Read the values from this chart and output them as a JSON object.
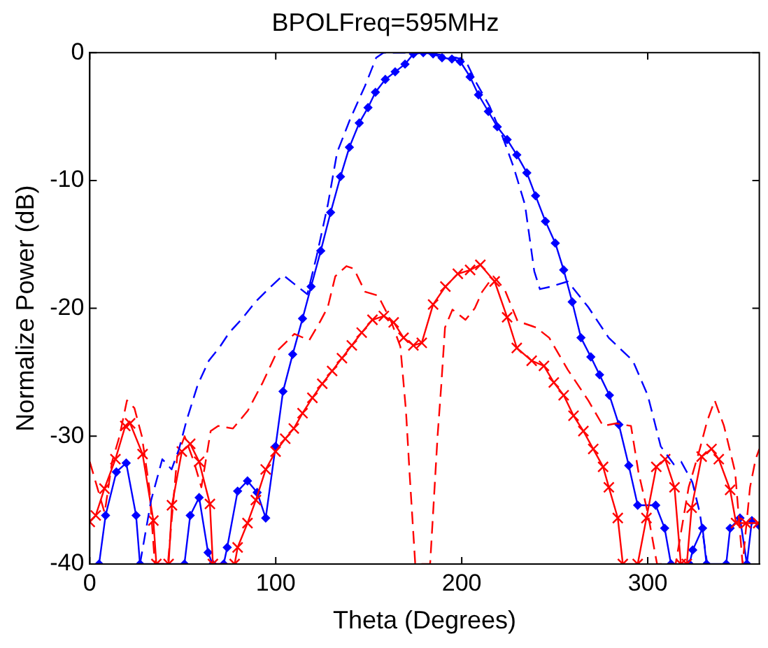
{
  "chart_data": {
    "type": "line",
    "title": "BPOLFreq=595MHz",
    "xlabel": "Theta (Degrees)",
    "ylabel": "Normalize Power (dB)",
    "xlim": [
      0,
      360
    ],
    "ylim": [
      -40,
      0
    ],
    "xticks": [
      0,
      100,
      200,
      300
    ],
    "yticks": [
      -40,
      -30,
      -20,
      -10,
      0
    ],
    "series": [
      {
        "color": "#0000ff",
        "line_style": "dashed",
        "marker": "none",
        "x": [
          27,
          33,
          39,
          44,
          48,
          52,
          58,
          64,
          70,
          75,
          82,
          89,
          96,
          104,
          110,
          117,
          122,
          128,
          133,
          140,
          148,
          154,
          158,
          165,
          174,
          180,
          190,
          197,
          202,
          208,
          215,
          222,
          228,
          234,
          239,
          242,
          248,
          257,
          268,
          279,
          292,
          300,
          307,
          314,
          318,
          324,
          328,
          332
        ],
        "values": [
          -40,
          -35,
          -31.8,
          -32.6,
          -31,
          -28.8,
          -26,
          -24.1,
          -23,
          -21.9,
          -20.8,
          -19.5,
          -18.5,
          -17.4,
          -18.1,
          -18.9,
          -15.9,
          -11.9,
          -7.8,
          -5.2,
          -2.6,
          -0.4,
          0,
          0,
          0,
          0,
          -0.2,
          -0.4,
          -0.6,
          -2.4,
          -4.2,
          -6.6,
          -9,
          -11.9,
          -17.1,
          -18.5,
          -18.3,
          -17.9,
          -19.9,
          -22.3,
          -24.1,
          -26.8,
          -30.8,
          -32.2,
          -32,
          -33.6,
          -36,
          -40
        ]
      },
      {
        "color": "#ff0000",
        "line_style": "dashed",
        "marker": "none",
        "x": [
          0,
          4,
          8,
          12,
          16,
          20,
          24,
          28,
          32,
          35,
          42,
          47,
          51,
          56,
          60,
          65,
          69,
          77,
          85,
          93,
          101,
          110,
          118,
          124,
          128,
          132,
          138,
          142,
          148,
          155,
          162,
          167,
          170,
          172,
          175,
          183,
          187,
          189,
          191,
          195,
          202,
          207,
          211,
          217,
          223,
          230,
          240,
          247,
          257,
          268,
          276,
          283,
          291,
          295,
          300,
          305,
          315,
          322,
          328,
          332,
          336,
          341,
          347,
          351,
          355,
          358,
          360
        ],
        "values": [
          -32,
          -34,
          -36,
          -32,
          -30,
          -27.2,
          -27.8,
          -30,
          -34,
          -40,
          -40,
          -31.6,
          -30,
          -32,
          -34,
          -29.6,
          -29.2,
          -29.4,
          -28,
          -25.8,
          -23.3,
          -22,
          -22.5,
          -21,
          -19.9,
          -17.5,
          -16.7,
          -16.9,
          -18.7,
          -19,
          -21,
          -23,
          -28,
          -33,
          -40,
          -40,
          -30,
          -26,
          -21.5,
          -20.1,
          -20.9,
          -20,
          -18.7,
          -17.5,
          -18.5,
          -21,
          -21.5,
          -22.3,
          -24.8,
          -27.2,
          -29.2,
          -29,
          -29.2,
          -32.8,
          -36,
          -40,
          -40,
          -34,
          -31,
          -28.8,
          -27.2,
          -29.2,
          -32.8,
          -40,
          -34,
          -31.8,
          -31
        ]
      },
      {
        "color": "#ff0000",
        "line_style": "solid",
        "marker": "cross",
        "x": [
          0,
          3.2,
          7.9,
          13.8,
          19.1,
          21.7,
          28.4,
          34.2,
          35.8,
          42.4,
          44.2,
          49.5,
          54,
          58.8,
          64.6,
          66.2,
          77.9,
          79.5,
          84.8,
          89.3,
          94.6,
          99.9,
          105.1,
          109.7,
          114.4,
          119.7,
          125,
          130.3,
          135.6,
          140.9,
          146.2,
          152,
          158.1,
          163.4,
          168.7,
          174,
          178.5,
          184.6,
          191.2,
          197.9,
          204.5,
          210,
          217.7,
          224.4,
          229.6,
          237.6,
          244.2,
          249.5,
          254.8,
          260.1,
          265.4,
          270.7,
          276,
          279.1,
          283.9,
          286.6,
          294.6,
          299.3,
          304.6,
          309.4,
          314.4,
          317.8,
          321,
          323.6,
          329,
          334.3,
          338.2,
          344.3,
          347.5,
          352.8,
          359.4
        ],
        "values": [
          -36.7,
          -36.2,
          -34.1,
          -31.8,
          -29.2,
          -29,
          -31.4,
          -36.6,
          -40,
          -40,
          -35.4,
          -31.2,
          -30.6,
          -32,
          -35.3,
          -40,
          -40,
          -38.7,
          -36.8,
          -35,
          -32.6,
          -31.2,
          -30.2,
          -29.4,
          -28.2,
          -27,
          -25.9,
          -24.9,
          -23.9,
          -22.9,
          -21.9,
          -20.9,
          -20.6,
          -21.1,
          -22.3,
          -22.9,
          -22.7,
          -19.7,
          -18.3,
          -17.3,
          -17,
          -16.6,
          -17.9,
          -20.7,
          -23.1,
          -24.1,
          -24.5,
          -25.8,
          -26.8,
          -28.4,
          -29.6,
          -31,
          -32.4,
          -34,
          -36.4,
          -40,
          -40,
          -36.4,
          -32.4,
          -31.8,
          -34,
          -40,
          -40,
          -35.6,
          -31.6,
          -31,
          -31.8,
          -34.2,
          -36.8,
          -36.8,
          -36.8
        ]
      },
      {
        "color": "#0000ff",
        "line_style": "solid",
        "marker": "diamond",
        "x": [
          5,
          8.5,
          14.3,
          19.6,
          24.9,
          27,
          50.9,
          54,
          58.8,
          63.6,
          66,
          72,
          73.9,
          79.5,
          84.8,
          90,
          94.6,
          99.9,
          103.9,
          109.1,
          114.4,
          119,
          124.2,
          129.5,
          134.8,
          139.6,
          144.9,
          149.6,
          153.6,
          158.9,
          164.2,
          169.5,
          174,
          179.3,
          184.6,
          189.4,
          194.7,
          199.2,
          204.5,
          209,
          214.3,
          219.1,
          224.4,
          229.6,
          235,
          239.7,
          245,
          250.3,
          254.8,
          259.4,
          264.1,
          269.4,
          274.1,
          279.4,
          284.5,
          289.8,
          294.6,
          304.3,
          309.1,
          312.5,
          322.4,
          324.2,
          329.5,
          331.6,
          342.2,
          344.3,
          349.6,
          353.3,
          356,
          360
        ],
        "values": [
          -40,
          -36.2,
          -32.8,
          -32.1,
          -36.2,
          -40,
          -40,
          -36.2,
          -34.8,
          -39.1,
          -40,
          -40,
          -38.7,
          -34.3,
          -33.5,
          -34.4,
          -36.4,
          -30.8,
          -26.5,
          -23.6,
          -20.8,
          -18.3,
          -15.5,
          -12.5,
          -9.7,
          -7.4,
          -5.5,
          -4.3,
          -3.1,
          -2.1,
          -1.5,
          -0.9,
          -0.1,
          0,
          -0.1,
          -0.4,
          -0.5,
          -0.7,
          -1.9,
          -3.3,
          -4.6,
          -5.8,
          -6.8,
          -8,
          -9.4,
          -11.2,
          -13.2,
          -14.9,
          -17,
          -19.5,
          -22.3,
          -23.8,
          -25.2,
          -26.8,
          -29.1,
          -32.3,
          -35.4,
          -35.4,
          -37.2,
          -40,
          -40,
          -38.9,
          -37.2,
          -40,
          -40,
          -37.2,
          -36.4,
          -40,
          -36.6,
          -37
        ]
      }
    ]
  }
}
